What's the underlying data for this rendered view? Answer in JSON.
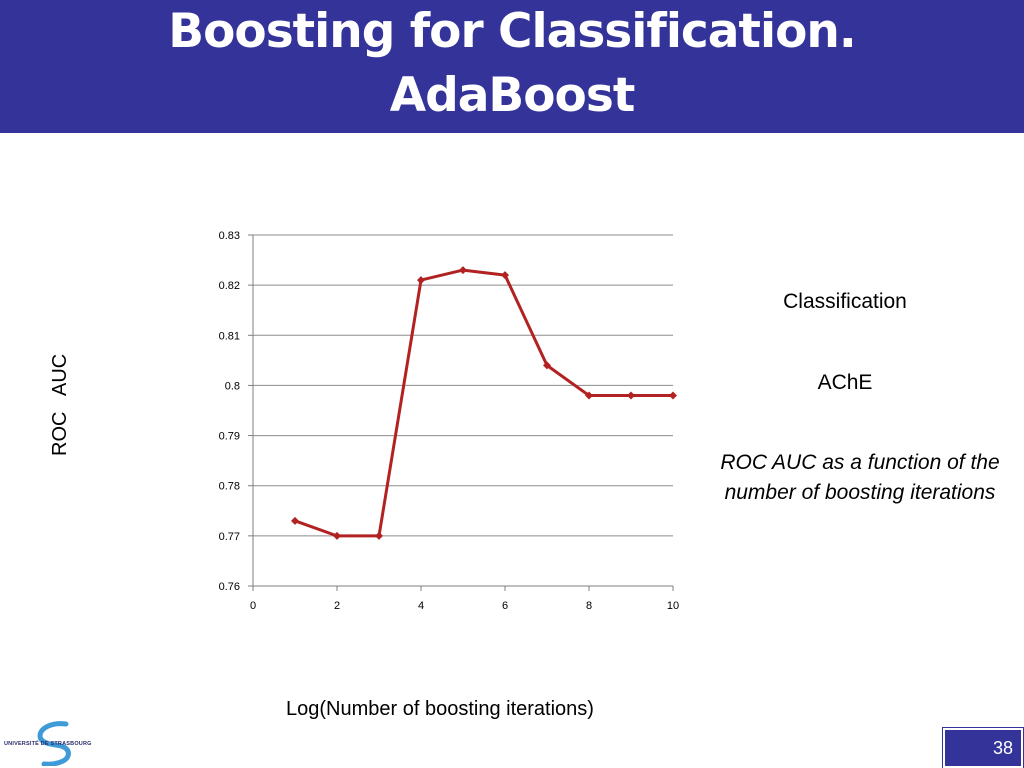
{
  "slide": {
    "title_line1": "Boosting for Classification.",
    "title_line2": "AdaBoost",
    "side_label_1": "Classification",
    "side_label_2": "AChE",
    "caption": "ROC AUC as a function of the number of boosting iterations",
    "logo_text": "UNIVERSITÉ DE STRASBOURG",
    "page_number": "38",
    "header_color": "#333399"
  },
  "chart_data": {
    "type": "line",
    "title": "",
    "xlabel": "Log(Number of boosting iterations)",
    "ylabel": "ROC   AUC",
    "xlim": [
      0,
      10
    ],
    "ylim": [
      0.76,
      0.83
    ],
    "x_ticks": [
      "0",
      "2",
      "4",
      "6",
      "8",
      "10"
    ],
    "y_ticks": [
      "0.76",
      "0.77",
      "0.78",
      "0.79",
      "0.8",
      "0.81",
      "0.82",
      "0.83"
    ],
    "grid": "horizontal",
    "series": [
      {
        "color": "#b22222",
        "marker": "diamond",
        "x": [
          1,
          2,
          3,
          4,
          5,
          6,
          7,
          8,
          9,
          10
        ],
        "y": [
          0.773,
          0.77,
          0.77,
          0.821,
          0.823,
          0.822,
          0.804,
          0.798,
          0.798,
          0.798
        ]
      }
    ]
  }
}
